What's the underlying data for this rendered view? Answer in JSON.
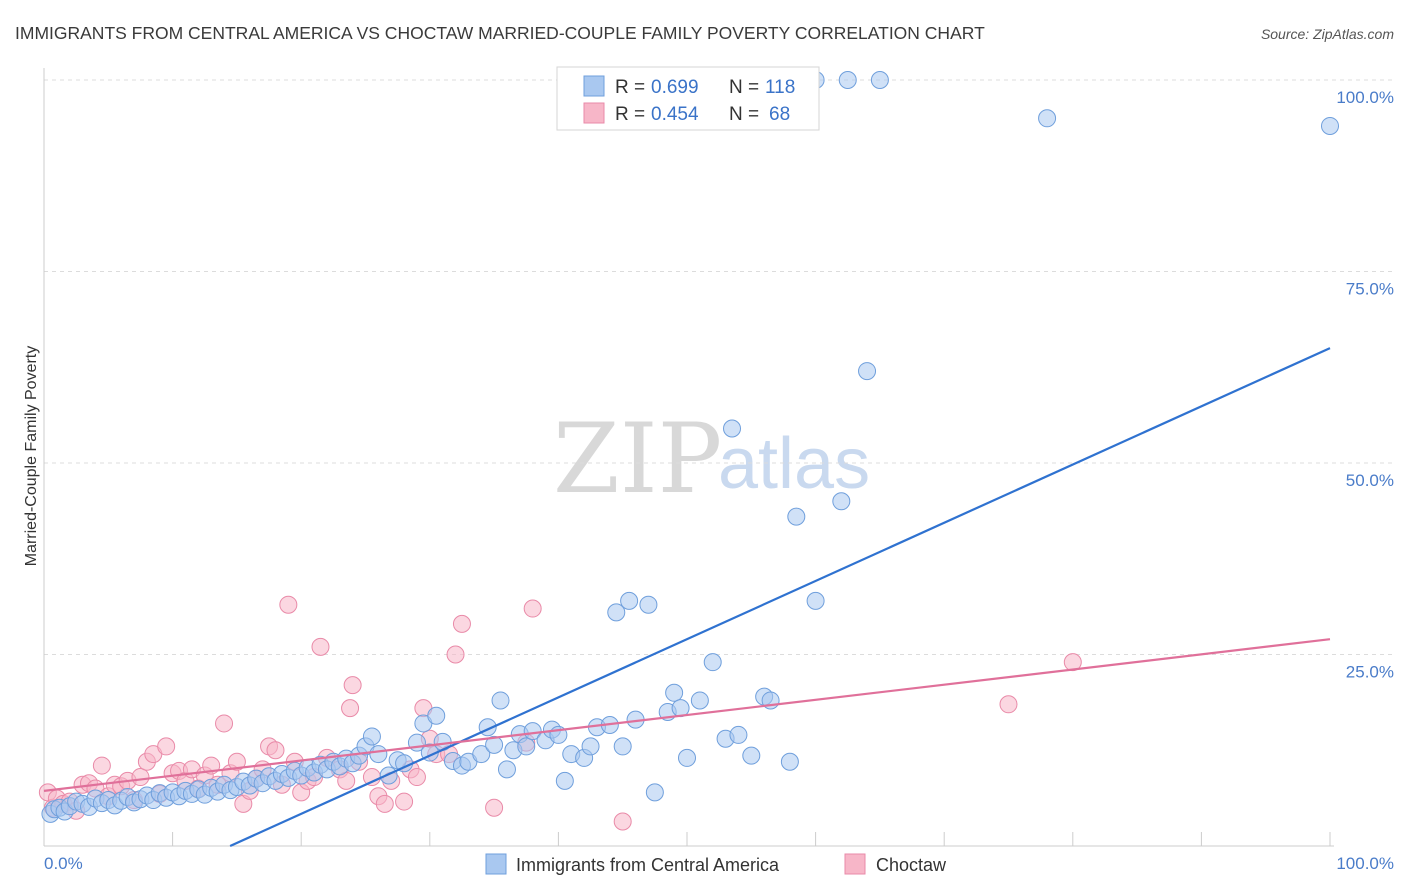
{
  "title": "IMMIGRANTS FROM CENTRAL AMERICA VS CHOCTAW MARRIED-COUPLE FAMILY POVERTY CORRELATION CHART",
  "source": "Source: ZipAtlas.com",
  "watermark": {
    "zip": "ZIP",
    "atlas": "atlas"
  },
  "legend": {
    "rows": [
      {
        "r_label": "R =",
        "r_value": "0.699",
        "n_label": "N =",
        "n_value": "118",
        "color": "#a9c8f0"
      },
      {
        "r_label": "R =",
        "r_value": "0.454",
        "n_label": "N =",
        "n_value": "68",
        "color": "#f7b6c8"
      }
    ]
  },
  "bottom_legend": [
    {
      "label": "Immigrants from Central America",
      "color": "#a9c8f0"
    },
    {
      "label": "Choctaw",
      "color": "#f7b6c8"
    }
  ],
  "chart_data": {
    "type": "scatter",
    "title": "IMMIGRANTS FROM CENTRAL AMERICA VS CHOCTAW MARRIED-COUPLE FAMILY POVERTY CORRELATION CHART",
    "xlabel": "",
    "ylabel": "Married-Couple Family Poverty",
    "xlim": [
      0,
      100
    ],
    "ylim": [
      0,
      100
    ],
    "x_tick_labels": [
      "0.0%",
      "100.0%"
    ],
    "y_ticks": [
      25,
      50,
      75,
      100
    ],
    "y_tick_labels": [
      "25.0%",
      "50.0%",
      "75.0%",
      "100.0%"
    ],
    "grid": true,
    "legend_position": "top-center",
    "series": [
      {
        "name": "Immigrants from Central America",
        "color": "#a9c8f0",
        "line_color": "#2f72d0",
        "trend": [
          [
            0,
            -11
          ],
          [
            100,
            65
          ]
        ],
        "points": [
          [
            0.5,
            4.2
          ],
          [
            0.8,
            4.8
          ],
          [
            1.2,
            5.0
          ],
          [
            1.6,
            4.5
          ],
          [
            2.0,
            5.2
          ],
          [
            2.5,
            5.8
          ],
          [
            3.0,
            5.5
          ],
          [
            3.5,
            5.1
          ],
          [
            4.0,
            6.2
          ],
          [
            4.5,
            5.6
          ],
          [
            5.0,
            6.0
          ],
          [
            5.5,
            5.3
          ],
          [
            6.0,
            5.9
          ],
          [
            6.5,
            6.4
          ],
          [
            7.0,
            5.7
          ],
          [
            7.5,
            6.1
          ],
          [
            8.0,
            6.6
          ],
          [
            8.5,
            6.0
          ],
          [
            9.0,
            6.9
          ],
          [
            9.5,
            6.3
          ],
          [
            10.0,
            7.0
          ],
          [
            10.5,
            6.5
          ],
          [
            11.0,
            7.2
          ],
          [
            11.5,
            6.8
          ],
          [
            12.0,
            7.4
          ],
          [
            12.5,
            6.7
          ],
          [
            13.0,
            7.6
          ],
          [
            13.5,
            7.1
          ],
          [
            14.0,
            8.0
          ],
          [
            14.5,
            7.3
          ],
          [
            15.0,
            7.7
          ],
          [
            15.5,
            8.4
          ],
          [
            16.0,
            7.9
          ],
          [
            16.5,
            8.8
          ],
          [
            17.0,
            8.2
          ],
          [
            17.5,
            9.1
          ],
          [
            18.0,
            8.5
          ],
          [
            18.5,
            9.4
          ],
          [
            19.0,
            8.9
          ],
          [
            19.5,
            9.8
          ],
          [
            20.0,
            9.2
          ],
          [
            20.5,
            10.2
          ],
          [
            21.0,
            9.6
          ],
          [
            21.5,
            10.6
          ],
          [
            22.0,
            10.0
          ],
          [
            22.5,
            11.0
          ],
          [
            23.0,
            10.4
          ],
          [
            23.5,
            11.4
          ],
          [
            24.0,
            10.8
          ],
          [
            24.5,
            11.8
          ],
          [
            25.0,
            13.0
          ],
          [
            25.5,
            14.3
          ],
          [
            26.0,
            12.0
          ],
          [
            26.8,
            9.2
          ],
          [
            27.5,
            11.2
          ],
          [
            28.0,
            10.8
          ],
          [
            29.0,
            13.5
          ],
          [
            29.5,
            16.0
          ],
          [
            30.0,
            12.2
          ],
          [
            30.5,
            17.0
          ],
          [
            31.0,
            13.6
          ],
          [
            31.8,
            11.1
          ],
          [
            32.5,
            10.5
          ],
          [
            33.0,
            11.0
          ],
          [
            34.0,
            12.0
          ],
          [
            34.5,
            15.5
          ],
          [
            35.0,
            13.2
          ],
          [
            35.5,
            19.0
          ],
          [
            36.0,
            10.0
          ],
          [
            36.5,
            12.5
          ],
          [
            37.0,
            14.6
          ],
          [
            37.5,
            13.0
          ],
          [
            38.0,
            15.0
          ],
          [
            39.0,
            13.8
          ],
          [
            39.5,
            15.2
          ],
          [
            40.0,
            14.5
          ],
          [
            40.5,
            8.5
          ],
          [
            41.0,
            12.0
          ],
          [
            42.0,
            11.5
          ],
          [
            42.5,
            13.0
          ],
          [
            43.0,
            15.5
          ],
          [
            44.0,
            15.8
          ],
          [
            44.5,
            30.5
          ],
          [
            45.0,
            13.0
          ],
          [
            45.5,
            32.0
          ],
          [
            46.0,
            16.5
          ],
          [
            47.0,
            31.5
          ],
          [
            47.5,
            7.0
          ],
          [
            48.5,
            17.5
          ],
          [
            49.0,
            20.0
          ],
          [
            49.5,
            18.0
          ],
          [
            50.0,
            11.5
          ],
          [
            51.0,
            19.0
          ],
          [
            52.0,
            24.0
          ],
          [
            53.0,
            14.0
          ],
          [
            53.5,
            54.5
          ],
          [
            54.0,
            14.5
          ],
          [
            55.0,
            11.8
          ],
          [
            56.0,
            19.5
          ],
          [
            56.5,
            19.0
          ],
          [
            58.0,
            11.0
          ],
          [
            58.5,
            43.0
          ],
          [
            60.0,
            32.0
          ],
          [
            62.0,
            45.0
          ],
          [
            64.0,
            62.0
          ],
          [
            60.0,
            100
          ],
          [
            62.5,
            100
          ],
          [
            65.0,
            100
          ],
          [
            78.0,
            95.0
          ],
          [
            100,
            94.0
          ]
        ]
      },
      {
        "name": "Choctaw",
        "color": "#f7b6c8",
        "line_color": "#e0709a",
        "trend": [
          [
            0,
            7.2
          ],
          [
            100,
            27
          ]
        ],
        "points": [
          [
            0.3,
            7.0
          ],
          [
            0.7,
            5.0
          ],
          [
            1.0,
            6.2
          ],
          [
            1.5,
            5.5
          ],
          [
            2.0,
            5.8
          ],
          [
            2.5,
            4.6
          ],
          [
            3.0,
            8.0
          ],
          [
            3.5,
            8.2
          ],
          [
            4.0,
            7.5
          ],
          [
            4.5,
            10.5
          ],
          [
            5.0,
            6.5
          ],
          [
            5.5,
            8.0
          ],
          [
            6.0,
            7.8
          ],
          [
            6.5,
            8.5
          ],
          [
            7.0,
            6.0
          ],
          [
            7.5,
            9.0
          ],
          [
            8.0,
            11.0
          ],
          [
            8.5,
            12.0
          ],
          [
            9.0,
            6.8
          ],
          [
            9.5,
            13.0
          ],
          [
            10.0,
            9.5
          ],
          [
            10.5,
            9.8
          ],
          [
            11.0,
            8.5
          ],
          [
            11.5,
            10.0
          ],
          [
            12.0,
            7.5
          ],
          [
            12.5,
            9.2
          ],
          [
            13.0,
            10.5
          ],
          [
            13.5,
            8.0
          ],
          [
            14.0,
            16.0
          ],
          [
            14.5,
            9.5
          ],
          [
            15.0,
            11.0
          ],
          [
            15.5,
            5.5
          ],
          [
            16.0,
            7.2
          ],
          [
            16.5,
            8.8
          ],
          [
            17.0,
            10.0
          ],
          [
            17.5,
            13.0
          ],
          [
            18.0,
            12.5
          ],
          [
            18.5,
            8.0
          ],
          [
            19.0,
            31.5
          ],
          [
            19.5,
            11.0
          ],
          [
            20.0,
            7.0
          ],
          [
            20.5,
            8.5
          ],
          [
            21.0,
            9.0
          ],
          [
            21.5,
            26.0
          ],
          [
            22.0,
            11.5
          ],
          [
            23.0,
            10.0
          ],
          [
            23.5,
            8.5
          ],
          [
            23.8,
            18.0
          ],
          [
            24.0,
            21.0
          ],
          [
            24.5,
            11.0
          ],
          [
            25.5,
            9.0
          ],
          [
            26.0,
            6.5
          ],
          [
            26.5,
            5.5
          ],
          [
            27.0,
            8.5
          ],
          [
            28.0,
            5.8
          ],
          [
            28.5,
            10.0
          ],
          [
            29.0,
            9.0
          ],
          [
            29.5,
            18.0
          ],
          [
            30.0,
            14.0
          ],
          [
            30.5,
            12.0
          ],
          [
            31.5,
            12.0
          ],
          [
            32.0,
            25.0
          ],
          [
            32.5,
            29.0
          ],
          [
            35.0,
            5.0
          ],
          [
            37.5,
            13.5
          ],
          [
            38.0,
            31.0
          ],
          [
            45.0,
            3.2
          ],
          [
            75.0,
            18.5
          ],
          [
            80.0,
            24.0
          ]
        ]
      }
    ]
  }
}
